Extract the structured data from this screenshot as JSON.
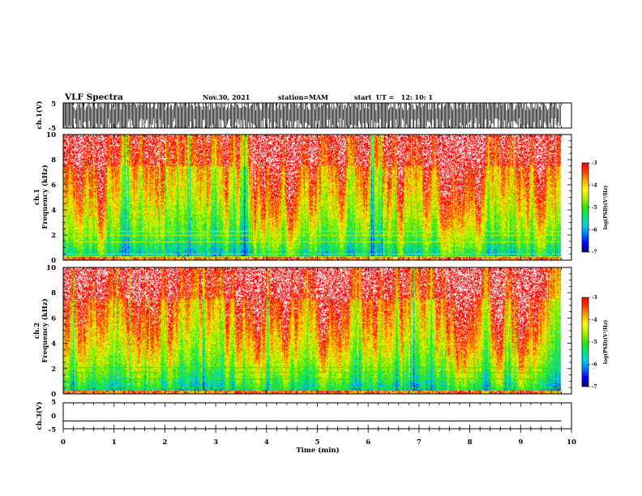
{
  "header": {
    "title": "VLF Spectra",
    "date": "Nov.30, 2021",
    "station": "station=MAM",
    "start_ut": "start  UT =   12: 10: 1"
  },
  "colors": {
    "axis": "#000000",
    "colormap": [
      "#000078",
      "#0000ff",
      "#0078ff",
      "#00d2e6",
      "#00e678",
      "#32e600",
      "#aaf000",
      "#ffff00",
      "#ffaa00",
      "#ff3c00",
      "#ff0000",
      "#ffffff"
    ]
  },
  "chart_data": [
    {
      "type": "line",
      "name": "ch.1 waveform",
      "ylabel": "ch.1(V)",
      "yticks": [
        "5",
        "-5"
      ],
      "ylim": [
        -5,
        5
      ],
      "xlim": [
        0,
        10
      ],
      "description_values": "dense impulsive spikes reaching +/-5 V throughout 0-9.8 min"
    },
    {
      "type": "heatmap",
      "ylabel_line1": "ch.1",
      "ylabel_line2": "Frequency (kHz)",
      "yticks": [
        "0",
        "2",
        "4",
        "6",
        "8",
        "10"
      ],
      "ylim": [
        0,
        10
      ],
      "xlim": [
        0,
        10
      ],
      "data_extent_min": 9.8,
      "horizontal_lines_khz": [
        0.3,
        0.5,
        1.5,
        2.0,
        2.3
      ],
      "colorbar": {
        "ticks": [
          "-3",
          "-4",
          "-5",
          "-6",
          "-7"
        ],
        "range": [
          -7,
          -3
        ],
        "label": "log(PSD)(V²/Hz)"
      }
    },
    {
      "type": "heatmap",
      "ylabel_line1": "ch.2",
      "ylabel_line2": "Frequency (kHz)",
      "yticks": [
        "0",
        "2",
        "4",
        "6",
        "8",
        "10"
      ],
      "ylim": [
        0,
        10
      ],
      "xlim": [
        0,
        10
      ],
      "data_extent_min": 9.8,
      "horizontal_lines_khz": [
        0.5,
        1.2,
        1.7,
        2.1
      ],
      "colorbar": {
        "ticks": [
          "-3",
          "-4",
          "-5",
          "-6",
          "-7"
        ],
        "range": [
          -7,
          -3
        ],
        "label": "log(PSD)(V²/Hz)"
      }
    },
    {
      "type": "line",
      "name": "ch.3 waveform",
      "ylabel": "ch.3(V)",
      "yticks": [
        "5",
        "0",
        "-5"
      ],
      "ylim": [
        -5,
        5
      ],
      "xlim": [
        0,
        10
      ],
      "x": [
        0,
        9.8
      ],
      "y": [
        -2,
        -2
      ]
    }
  ],
  "xaxis": {
    "label": "Time (min)",
    "ticks": [
      "0",
      "1",
      "2",
      "3",
      "4",
      "5",
      "6",
      "7",
      "8",
      "9",
      "10"
    ]
  }
}
